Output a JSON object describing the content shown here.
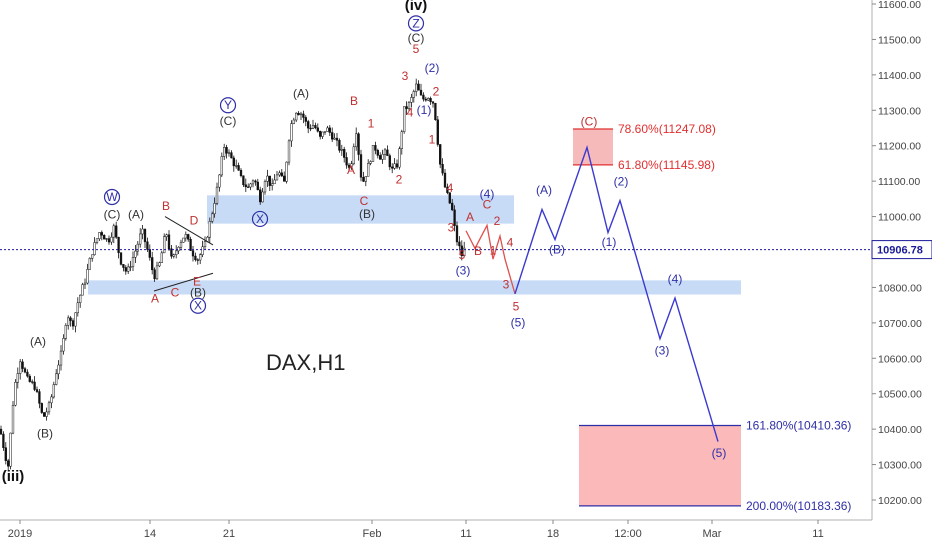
{
  "chart_data": {
    "type": "candlestick",
    "title": "DAX,H1",
    "y_axis": {
      "ylim": [
        10155,
        11620
      ],
      "ticks": [
        10200,
        10300,
        10400,
        10500,
        10600,
        10700,
        10800,
        10900,
        11000,
        11100,
        11200,
        11300,
        11400,
        11500,
        11600
      ],
      "tick_labels": [
        "10200.00",
        "10300.00",
        "10400.00",
        "10500.00",
        "10600.00",
        "10700.00",
        "10800.00",
        "10900.00",
        "11000.00",
        "11100.00",
        "11200.00",
        "11300.00",
        "11400.00",
        "11500.00",
        "11600.00"
      ],
      "position": "right"
    },
    "x_axis": {
      "tick_labels": [
        "2019",
        "14",
        "21",
        "Feb",
        "11",
        "18",
        "12:00",
        "Mar",
        "11"
      ]
    },
    "current_price": {
      "value": 10906.78,
      "label": "10906.78",
      "color": "#1a1a99"
    },
    "price_path": [
      [
        0,
        10400
      ],
      [
        8,
        10290
      ],
      [
        14,
        10510
      ],
      [
        20,
        10600
      ],
      [
        27,
        10540
      ],
      [
        35,
        10520
      ],
      [
        43,
        10430
      ],
      [
        50,
        10470
      ],
      [
        56,
        10560
      ],
      [
        62,
        10620
      ],
      [
        67,
        10730
      ],
      [
        72,
        10690
      ],
      [
        78,
        10760
      ],
      [
        85,
        10820
      ],
      [
        92,
        10900
      ],
      [
        100,
        10960
      ],
      [
        108,
        10930
      ],
      [
        114,
        10970
      ],
      [
        120,
        10880
      ],
      [
        127,
        10840
      ],
      [
        135,
        10900
      ],
      [
        142,
        10960
      ],
      [
        148,
        10900
      ],
      [
        154,
        10830
      ],
      [
        160,
        10870
      ],
      [
        166,
        10960
      ],
      [
        172,
        10870
      ],
      [
        178,
        10920
      ],
      [
        185,
        10950
      ],
      [
        192,
        10900
      ],
      [
        198,
        10880
      ],
      [
        205,
        10920
      ],
      [
        212,
        11010
      ],
      [
        218,
        11090
      ],
      [
        224,
        11200
      ],
      [
        230,
        11170
      ],
      [
        236,
        11140
      ],
      [
        242,
        11100
      ],
      [
        248,
        11080
      ],
      [
        254,
        11110
      ],
      [
        260,
        11050
      ],
      [
        266,
        11120
      ],
      [
        272,
        11080
      ],
      [
        278,
        11130
      ],
      [
        284,
        11090
      ],
      [
        290,
        11250
      ],
      [
        296,
        11300
      ],
      [
        302,
        11290
      ],
      [
        308,
        11250
      ],
      [
        314,
        11260
      ],
      [
        320,
        11220
      ],
      [
        326,
        11250
      ],
      [
        332,
        11230
      ],
      [
        338,
        11200
      ],
      [
        344,
        11170
      ],
      [
        350,
        11130
      ],
      [
        356,
        11250
      ],
      [
        362,
        11090
      ],
      [
        368,
        11140
      ],
      [
        374,
        11200
      ],
      [
        380,
        11170
      ],
      [
        386,
        11180
      ],
      [
        392,
        11130
      ],
      [
        398,
        11150
      ],
      [
        404,
        11300
      ],
      [
        410,
        11320
      ],
      [
        416,
        11370
      ],
      [
        422,
        11330
      ],
      [
        428,
        11340
      ],
      [
        434,
        11320
      ],
      [
        440,
        11150
      ],
      [
        446,
        11070
      ],
      [
        452,
        11020
      ],
      [
        456,
        10940
      ],
      [
        462,
        10890
      ],
      [
        466,
        10920
      ]
    ],
    "zones": [
      {
        "name": "support-zone-upper",
        "y0": 10980,
        "y1": 11060
      },
      {
        "name": "support-zone-lower",
        "y0": 10780,
        "y1": 10820
      },
      {
        "name": "fib-zone-top",
        "y0": 11145.98,
        "y1": 11247.08
      },
      {
        "name": "fib-zone-bottom",
        "y0": 10183.36,
        "y1": 10410.36
      }
    ],
    "fib_labels": [
      {
        "text": "78.60%(11247.08)",
        "value": 11247.08,
        "color": "#e03030"
      },
      {
        "text": "61.80%(11145.98)",
        "value": 11145.98,
        "color": "#e03030"
      },
      {
        "text": "161.80%(10410.36)",
        "value": 10410.36,
        "color": "#2f2fa8"
      },
      {
        "text": "200.00%(10183.36)",
        "value": 10183.36,
        "color": "#2f2fa8"
      }
    ],
    "triangle": {
      "upper": [
        [
          165,
          11000
        ],
        [
          213,
          10920
        ]
      ],
      "lower": [
        [
          154,
          10790
        ],
        [
          213,
          10840
        ]
      ]
    },
    "projection_blue": [
      [
        515,
        10782
      ],
      [
        542,
        11020
      ],
      [
        555,
        10935
      ],
      [
        587,
        11195
      ],
      [
        608,
        10955
      ],
      [
        620,
        11045
      ],
      [
        660,
        10655
      ],
      [
        675,
        10770
      ],
      [
        718,
        10365
      ]
    ],
    "projection_red": [
      [
        466,
        10960
      ],
      [
        475,
        10910
      ],
      [
        487,
        10975
      ],
      [
        493,
        10880
      ],
      [
        500,
        10945
      ],
      [
        505,
        10880
      ],
      [
        515,
        10782
      ]
    ],
    "annotations": [
      {
        "text": "(iv)",
        "x": 416,
        "y": 11583,
        "color": "#111111",
        "weight": "bold",
        "size": 15
      },
      {
        "text": "Z",
        "x": 416,
        "y": 11534,
        "color": "#2f2fa8",
        "circle": true
      },
      {
        "text": "(C)",
        "x": 416,
        "y": 11493,
        "color": "#333333"
      },
      {
        "text": "5",
        "x": 416,
        "y": 11462,
        "color": "#c03030"
      },
      {
        "text": "(2)",
        "x": 432,
        "y": 11408,
        "color": "#2f2fa8"
      },
      {
        "text": "3",
        "x": 405,
        "y": 11386,
        "color": "#c03030"
      },
      {
        "text": "2",
        "x": 436,
        "y": 11342,
        "color": "#c03030"
      },
      {
        "text": "4",
        "x": 410,
        "y": 11282,
        "color": "#c03030"
      },
      {
        "text": "(1)",
        "x": 424,
        "y": 11290,
        "color": "#2f2fa8"
      },
      {
        "text": "1",
        "x": 432,
        "y": 11206,
        "color": "#c03030"
      },
      {
        "text": "3",
        "x": 451,
        "y": 10958,
        "color": "#c03030"
      },
      {
        "text": "4",
        "x": 450,
        "y": 11070,
        "color": "#c03030"
      },
      {
        "text": "5",
        "x": 462,
        "y": 10880,
        "color": "#c03030"
      },
      {
        "text": "(3)",
        "x": 463,
        "y": 10837,
        "color": "#2f2fa8"
      },
      {
        "text": "(4)",
        "x": 487,
        "y": 11052,
        "color": "#2f2fa8"
      },
      {
        "text": "C",
        "x": 487,
        "y": 11023,
        "color": "#c03030"
      },
      {
        "text": "A",
        "x": 470,
        "y": 10988,
        "color": "#c03030"
      },
      {
        "text": "2",
        "x": 497,
        "y": 10976,
        "color": "#c03030"
      },
      {
        "text": "B",
        "x": 478,
        "y": 10892,
        "color": "#c03030"
      },
      {
        "text": "1",
        "x": 493,
        "y": 10893,
        "color": "#c03030"
      },
      {
        "text": "4",
        "x": 510,
        "y": 10915,
        "color": "#c03030"
      },
      {
        "text": "3",
        "x": 506,
        "y": 10797,
        "color": "#c03030"
      },
      {
        "text": "5",
        "x": 516,
        "y": 10735,
        "color": "#c03030"
      },
      {
        "text": "(5)",
        "x": 518,
        "y": 10690,
        "color": "#2f2fa8"
      },
      {
        "text": "(A)",
        "x": 544,
        "y": 11064,
        "color": "#2f2fa8"
      },
      {
        "text": "(B)",
        "x": 557,
        "y": 10896,
        "color": "#2f2fa8"
      },
      {
        "text": "(C)",
        "x": 589,
        "y": 11257,
        "color": "#c03030"
      },
      {
        "text": "(2)",
        "x": 621,
        "y": 11087,
        "color": "#2f2fa8"
      },
      {
        "text": "(1)",
        "x": 609,
        "y": 10917,
        "color": "#2f2fa8"
      },
      {
        "text": "(4)",
        "x": 675,
        "y": 10812,
        "color": "#2f2fa8"
      },
      {
        "text": "(3)",
        "x": 662,
        "y": 10611,
        "color": "#2f2fa8"
      },
      {
        "text": "(5)",
        "x": 719,
        "y": 10321,
        "color": "#2f2fa8"
      },
      {
        "text": "(A)",
        "x": 301,
        "y": 11336,
        "color": "#333333"
      },
      {
        "text": "B",
        "x": 354,
        "y": 11315,
        "color": "#c03030"
      },
      {
        "text": "1",
        "x": 371,
        "y": 11252,
        "color": "#c03030"
      },
      {
        "text": "A",
        "x": 351,
        "y": 11120,
        "color": "#c03030"
      },
      {
        "text": "2",
        "x": 399,
        "y": 11094,
        "color": "#c03030"
      },
      {
        "text": "C",
        "x": 364,
        "y": 11032,
        "color": "#c03030"
      },
      {
        "text": "(B)",
        "x": 367,
        "y": 10996,
        "color": "#333333"
      },
      {
        "text": "Y",
        "x": 228,
        "y": 11303,
        "color": "#2f2fa8",
        "circle": true
      },
      {
        "text": "(C)",
        "x": 228,
        "y": 11258,
        "color": "#333333"
      },
      {
        "text": "X",
        "x": 260,
        "y": 10982,
        "color": "#2f2fa8",
        "circle": true
      },
      {
        "text": "W",
        "x": 112,
        "y": 11044,
        "color": "#2f2fa8",
        "circle": true
      },
      {
        "text": "(C)",
        "x": 112,
        "y": 10995,
        "color": "#333333"
      },
      {
        "text": "(A)",
        "x": 136,
        "y": 10995,
        "color": "#333333"
      },
      {
        "text": "B",
        "x": 166,
        "y": 11018,
        "color": "#c03030"
      },
      {
        "text": "D",
        "x": 194,
        "y": 10977,
        "color": "#c03030"
      },
      {
        "text": "A",
        "x": 155,
        "y": 10758,
        "color": "#c03030"
      },
      {
        "text": "C",
        "x": 175,
        "y": 10775,
        "color": "#c03030"
      },
      {
        "text": "E",
        "x": 197,
        "y": 10806,
        "color": "#c03030"
      },
      {
        "text": "(B)",
        "x": 198,
        "y": 10775,
        "color": "#333333"
      },
      {
        "text": "X",
        "x": 198,
        "y": 10737,
        "color": "#2f2fa8",
        "circle": true
      },
      {
        "text": "(A)",
        "x": 38,
        "y": 10636,
        "color": "#333333"
      },
      {
        "text": "(B)",
        "x": 45,
        "y": 10376,
        "color": "#333333"
      },
      {
        "text": "(iii)",
        "x": 13,
        "y": 10254,
        "color": "#111111",
        "weight": "bold",
        "size": 15
      }
    ]
  }
}
